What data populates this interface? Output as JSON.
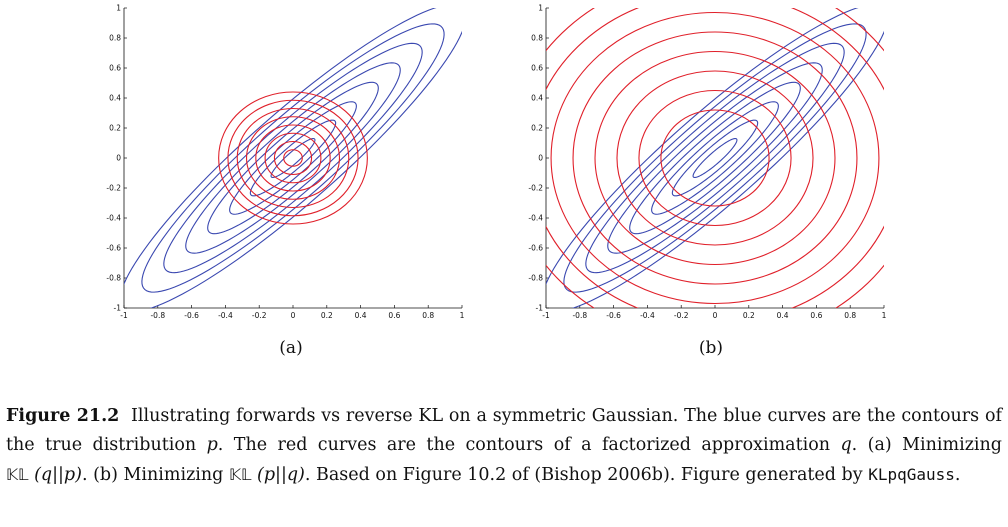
{
  "panels": [
    {
      "id": "a",
      "label": "(a)",
      "xticks": [
        "-1",
        "-0.8",
        "-0.6",
        "-0.4",
        "-0.2",
        "0",
        "0.2",
        "0.4",
        "0.6",
        "0.8",
        "1"
      ],
      "yticks": [
        "1",
        "0.8",
        "0.6",
        "0.4",
        "0.2",
        "0",
        "-0.2",
        "-0.4",
        "-0.6",
        "-0.8",
        "-1"
      ],
      "blue_ellipse_semi_axes_major": [
        0.18,
        0.35,
        0.52,
        0.7,
        0.88,
        1.06,
        1.24,
        1.42
      ],
      "red_circle_radii": [
        0.055,
        0.11,
        0.165,
        0.22,
        0.275,
        0.33,
        0.385,
        0.44
      ],
      "colors": {
        "true_dist": "#3a48b0",
        "approx": "#e0202a"
      }
    },
    {
      "id": "b",
      "label": "(b)",
      "xticks": [
        "-1",
        "-0.8",
        "-0.6",
        "-0.4",
        "-0.2",
        "0",
        "0.2",
        "0.4",
        "0.6",
        "0.8",
        "1"
      ],
      "yticks": [
        "1",
        "0.8",
        "0.6",
        "0.4",
        "0.2",
        "0",
        "-0.2",
        "-0.4",
        "-0.6",
        "-0.8",
        "-1"
      ],
      "blue_ellipse_semi_axes_major": [
        0.18,
        0.35,
        0.52,
        0.7,
        0.88,
        1.06,
        1.24,
        1.42
      ],
      "red_circle_radii": [
        0.32,
        0.45,
        0.58,
        0.71,
        0.84,
        0.97,
        1.1,
        1.23
      ],
      "colors": {
        "true_dist": "#3a48b0",
        "approx": "#e0202a"
      }
    }
  ],
  "caption": {
    "lead": "Figure 21.2",
    "text_1": "Illustrating forwards vs reverse KL on a symmetric Gaussian. The blue curves are the contours of the true distribution ",
    "p": "p",
    "text_2": ". The red curves are the contours of a factorized approximation ",
    "q": "q",
    "text_3": ". (a) Minimizing ",
    "kl": "𝕂𝕃",
    "kl_a_args": "(q||p)",
    "text_4": ". (b) Minimizing ",
    "kl_b_args": "(p||q)",
    "text_5": ". Based on Figure 10.2 of (Bishop 2006b). Figure generated by ",
    "code": "KLpqGauss",
    "text_6": "."
  }
}
